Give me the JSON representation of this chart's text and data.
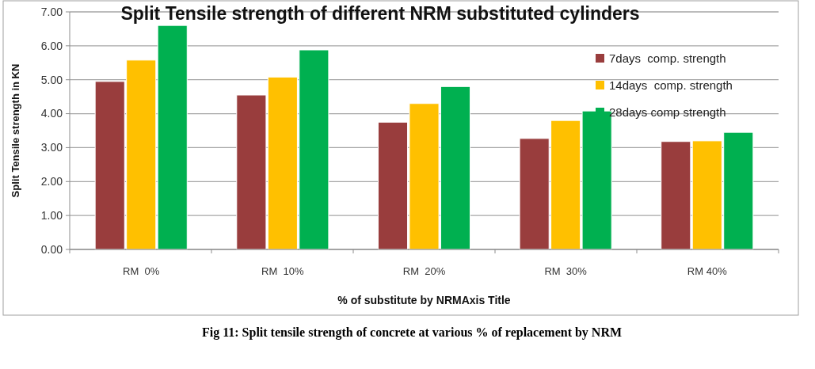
{
  "chart_data": {
    "type": "bar",
    "title": "Split Tensile strength of different NRM substituted cylinders",
    "xlabel": "% of substitute by NRMAxis Title",
    "ylabel": "Split Tensile strength in KN",
    "categories": [
      "RM  0%",
      "RM  10%",
      "RM  20%",
      "RM  30%",
      "RM 40%"
    ],
    "series": [
      {
        "name": "7days  comp. strength",
        "color": "#993d3d",
        "values": [
          4.95,
          4.55,
          3.75,
          3.27,
          3.18
        ]
      },
      {
        "name": "14days  comp. strength",
        "color": "#ffc000",
        "values": [
          5.58,
          5.08,
          4.3,
          3.8,
          3.2
        ]
      },
      {
        "name": "28days comp strength",
        "color": "#00b050",
        "values": [
          6.6,
          5.88,
          4.8,
          4.08,
          3.45
        ]
      }
    ],
    "ylim": [
      0,
      7
    ],
    "yticks": [
      {
        "value": 0,
        "label": "0.00"
      },
      {
        "value": 1,
        "label": "1.00"
      },
      {
        "value": 2,
        "label": "2.00"
      },
      {
        "value": 3,
        "label": "3.00"
      },
      {
        "value": 4,
        "label": "4.00"
      },
      {
        "value": 5,
        "label": "5.00"
      },
      {
        "value": 6,
        "label": "6.00"
      },
      {
        "value": 7,
        "label": "7.00"
      }
    ],
    "grid": "y",
    "legend": "top right",
    "annotations": [
      "Fig 11: Split tensile strength of concrete at various % of replacement by NRM"
    ]
  }
}
